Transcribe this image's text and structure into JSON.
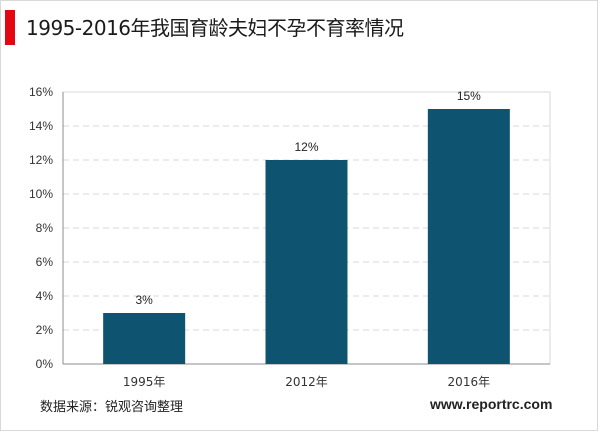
{
  "title": "1995-2016年我国育龄夫妇不孕不育率情况",
  "source": "数据来源：锐观咨询整理",
  "website": "www.reportrc.com",
  "colors": {
    "accent": "#e30613",
    "bar": "#0e5470"
  },
  "chart_data": {
    "type": "bar",
    "categories": [
      "1995年",
      "2012年",
      "2016年"
    ],
    "values": [
      3,
      12,
      15
    ],
    "data_labels": [
      "3%",
      "12%",
      "15%"
    ],
    "y_ticks": [
      "0%",
      "2%",
      "4%",
      "6%",
      "8%",
      "10%",
      "12%",
      "14%",
      "16%"
    ],
    "ylim": [
      0,
      16
    ],
    "grid": true
  }
}
